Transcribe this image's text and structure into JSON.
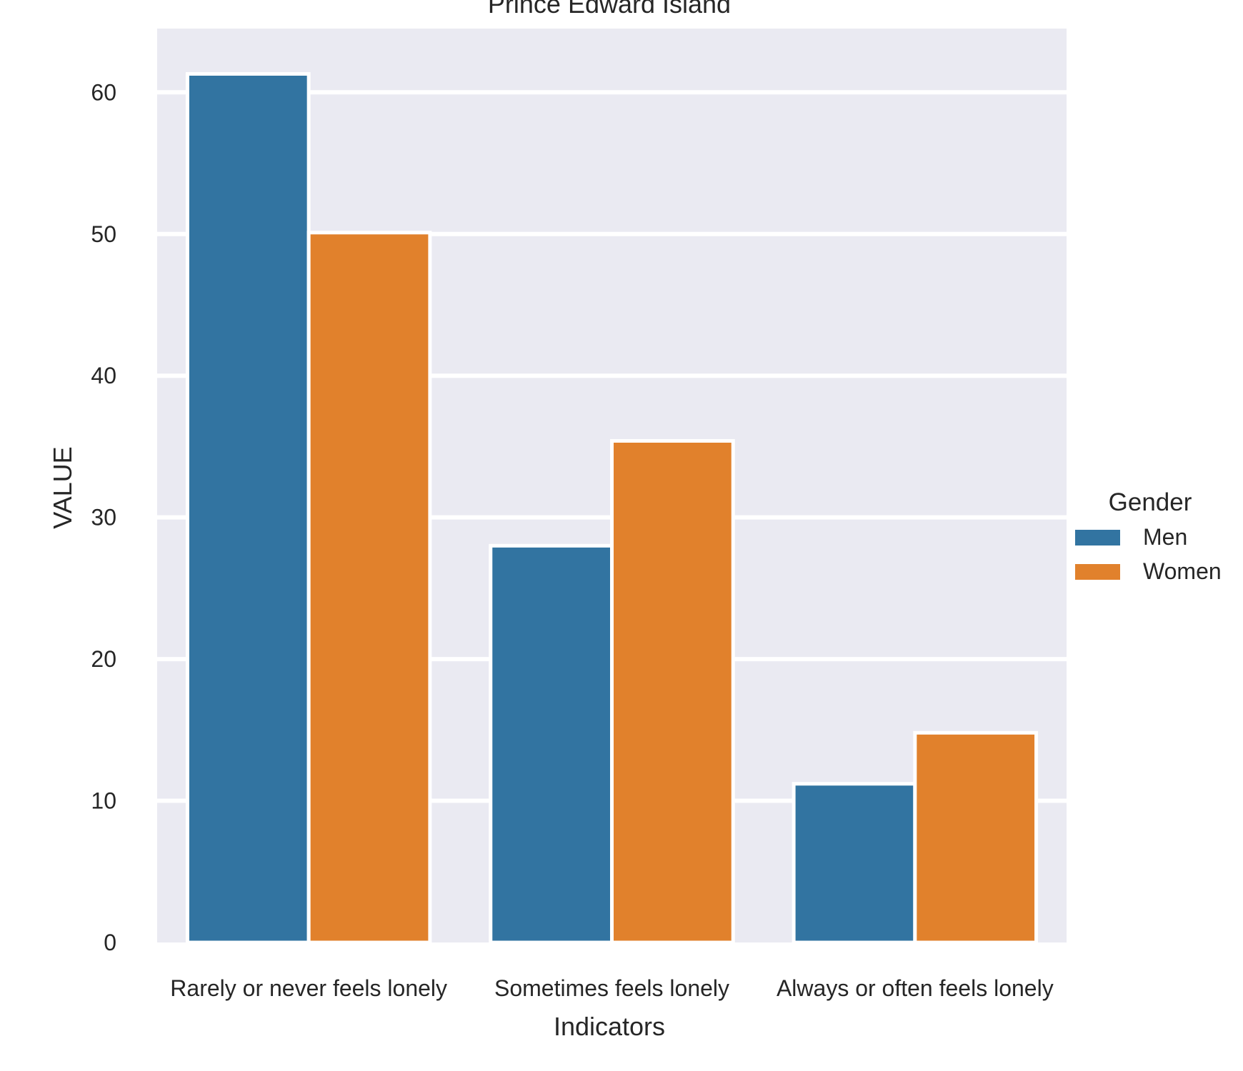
{
  "colors": {
    "plot_background": "#eaeaf2",
    "grid": "#ffffff",
    "bar_edge": "#ffffff"
  },
  "chart_data": {
    "type": "bar",
    "title": "Prince Edward Island",
    "xlabel": "Indicators",
    "ylabel": "VALUE",
    "categories": [
      "Rarely or never feels lonely",
      "Sometimes feels lonely",
      "Always or often feels lonely"
    ],
    "series": [
      {
        "name": "Men",
        "color": "#3274a1",
        "values": [
          61.3,
          28.0,
          11.2
        ]
      },
      {
        "name": "Women",
        "color": "#e1812c",
        "values": [
          50.1,
          35.4,
          14.8
        ]
      }
    ],
    "ylim": [
      0,
      64.5
    ],
    "yticks": [
      0,
      10,
      20,
      30,
      40,
      50,
      60
    ],
    "grid": true,
    "legend": {
      "title": "Gender",
      "placement": "right",
      "entries": [
        "Men",
        "Women"
      ]
    }
  }
}
